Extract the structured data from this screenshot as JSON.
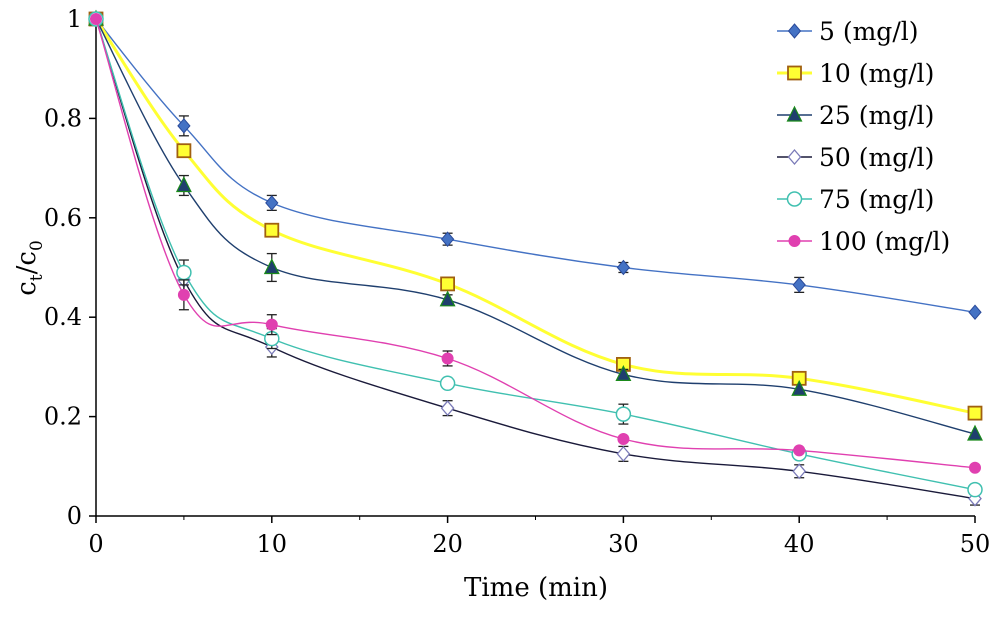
{
  "chart_data": {
    "type": "line",
    "xlabel": "Time (min)",
    "ylabel": {
      "main": "c",
      "sub1": "t",
      "slash": "/c",
      "sub2": "0"
    },
    "xlim": [
      0,
      50
    ],
    "ylim": [
      0,
      1
    ],
    "x_ticks": [
      "0",
      "10",
      "20",
      "30",
      "40",
      "50"
    ],
    "y_ticks": [
      "0",
      "0.2",
      "0.4",
      "0.6",
      "0.8",
      "1"
    ],
    "grid": false,
    "legend_position": "top-right",
    "x": [
      0,
      5,
      10,
      20,
      30,
      40,
      50
    ],
    "series": [
      {
        "name": "5 (mg/l)",
        "color": "#4472C4",
        "marker": "diamond-filled",
        "values": [
          1,
          0.785,
          0.63,
          0.557,
          0.5,
          0.465,
          0.41
        ],
        "errors": [
          0,
          0.02,
          0.015,
          0.012,
          0.01,
          0.015,
          0.0
        ]
      },
      {
        "name": "10 (mg/l)",
        "color": "#FFFF33",
        "marker": "square-filled",
        "values": [
          1,
          0.735,
          0.575,
          0.467,
          0.305,
          0.277,
          0.207
        ],
        "errors": [
          0,
          0.0,
          0.0,
          0.0,
          0.0,
          0.0,
          0.0
        ]
      },
      {
        "name": "25 (mg/l)",
        "color": "#1F3F6E",
        "marker": "triangle-filled",
        "values": [
          1,
          0.665,
          0.5,
          0.435,
          0.285,
          0.255,
          0.165
        ],
        "errors": [
          0,
          0.02,
          0.028,
          0.01,
          0.01,
          0.0,
          0.0
        ]
      },
      {
        "name": "50 (mg/l)",
        "color": "#1A1A3A",
        "marker": "diamond-open",
        "values": [
          1,
          0.475,
          0.34,
          0.217,
          0.125,
          0.09,
          0.035
        ],
        "errors": [
          0,
          0.025,
          0.02,
          0.015,
          0.015,
          0.013,
          0.013
        ]
      },
      {
        "name": "75 (mg/l)",
        "color": "#40C0B0",
        "marker": "circle-open",
        "values": [
          1,
          0.49,
          0.357,
          0.267,
          0.205,
          0.125,
          0.053
        ],
        "errors": [
          0,
          0.025,
          0.02,
          0.0,
          0.02,
          0.0,
          0.0
        ]
      },
      {
        "name": "100 (mg/l)",
        "color": "#E040B0",
        "marker": "circle-filled",
        "values": [
          1,
          0.445,
          0.385,
          0.317,
          0.155,
          0.132,
          0.097
        ],
        "errors": [
          0,
          0.03,
          0.02,
          0.015,
          0.0,
          0.0,
          0.0
        ]
      }
    ]
  }
}
